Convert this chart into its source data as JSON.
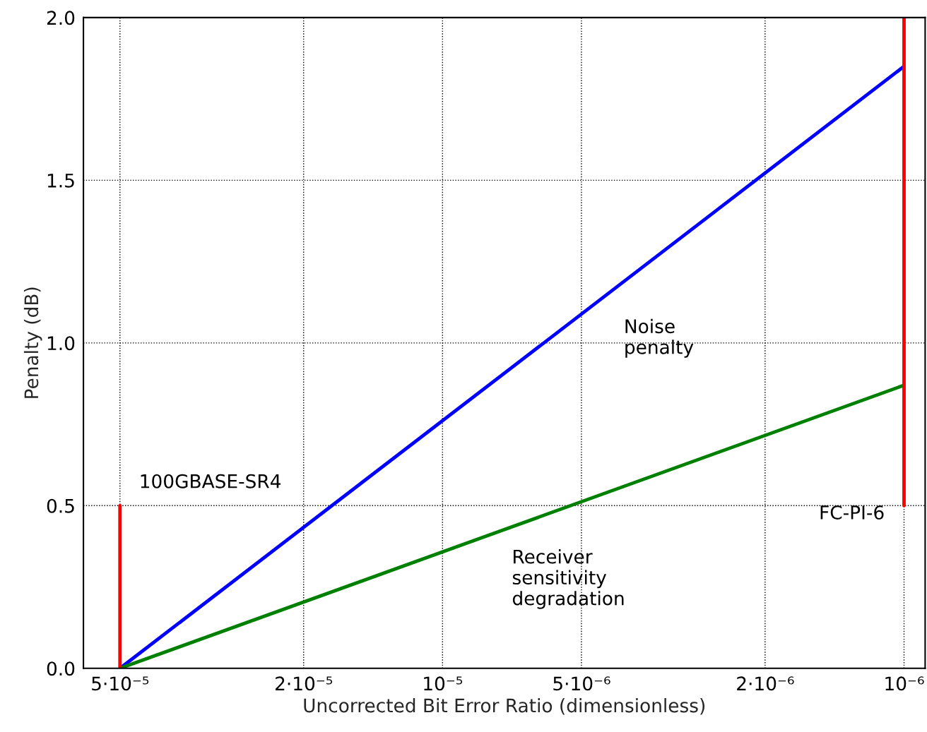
{
  "chart_data": {
    "type": "line",
    "xlabel": "Uncorrected Bit Error Ratio (dimensionless)",
    "ylabel": "Penalty (dB)",
    "x": [
      5e-05,
      1e-06
    ],
    "log": "x",
    "xlim": [
      6e-05,
      9e-07
    ],
    "ylim": [
      0.0,
      2.0
    ],
    "xticks": [
      {
        "value": 5e-05,
        "label": "5·10⁻⁵"
      },
      {
        "value": 2e-05,
        "label": "2·10⁻⁵"
      },
      {
        "value": 1e-05,
        "label": "10⁻⁵"
      },
      {
        "value": 5e-06,
        "label": "5·10⁻⁶"
      },
      {
        "value": 2e-06,
        "label": "2·10⁻⁶"
      },
      {
        "value": 1e-06,
        "label": "10⁻⁶"
      }
    ],
    "yticks": [
      {
        "value": 0,
        "label": "0.0"
      },
      0.5,
      {
        "value": 1,
        "label": "1.0"
      },
      1.5,
      {
        "value": 2,
        "label": "2.0"
      }
    ],
    "grid": true,
    "line_style": "solid",
    "series": [
      {
        "color": "#0000ff",
        "values": [
          0.0,
          1.85
        ]
      },
      {
        "color": "#008000",
        "values": [
          0.0,
          0.87
        ]
      }
    ],
    "ref_lines": [
      {
        "axis": "x",
        "value": 5e-05,
        "label": "100GBASE-SR4",
        "color": "#ff0000"
      },
      {
        "axis": "x",
        "value": 1e-06,
        "label": "FC-PI-6",
        "color": "#ff0000"
      }
    ],
    "annotations": [
      "Noise\npenalty",
      "Receiver\nsensitivity\ndegradation"
    ]
  }
}
